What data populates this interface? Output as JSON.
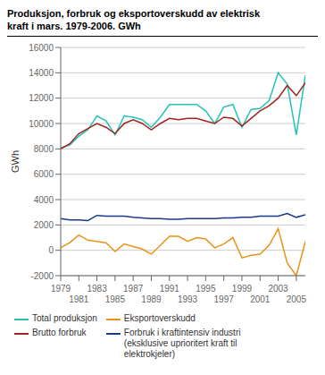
{
  "chart_data": {
    "type": "line",
    "title": "Produksjon, forbruk og eksportoverskudd av elektrisk\nkraft i mars. 1979-2006. GWh",
    "ylabel": "GWh",
    "x": [
      1979,
      1980,
      1981,
      1982,
      1983,
      1984,
      1985,
      1986,
      1987,
      1988,
      1989,
      1990,
      1991,
      1992,
      1993,
      1994,
      1995,
      1996,
      1997,
      1998,
      1999,
      2000,
      2001,
      2002,
      2003,
      2004,
      2005,
      2006
    ],
    "series": [
      {
        "name": "Total produksjon",
        "color": "#22c4b8",
        "values": [
          8100,
          8300,
          9000,
          9500,
          10600,
          10200,
          9100,
          10600,
          10500,
          10300,
          9700,
          10500,
          11500,
          11500,
          11500,
          11500,
          11000,
          10000,
          11300,
          11500,
          9700,
          11100,
          11200,
          11800,
          14000,
          13100,
          9100,
          13800
        ]
      },
      {
        "name": "Brutto forbruk",
        "color": "#a0251e",
        "values": [
          8000,
          8400,
          9200,
          9600,
          10000,
          9700,
          9200,
          10000,
          10300,
          10000,
          9500,
          10000,
          10400,
          10300,
          10400,
          10400,
          10200,
          10000,
          10500,
          10400,
          9800,
          10400,
          11000,
          11400,
          12000,
          13000,
          12200,
          13200
        ]
      },
      {
        "name": "Eksportoverskudd",
        "color": "#e8931a",
        "values": [
          200,
          600,
          1200,
          800,
          700,
          600,
          -100,
          500,
          300,
          100,
          -300,
          400,
          1100,
          1100,
          700,
          1000,
          900,
          200,
          500,
          1000,
          -600,
          -400,
          -300,
          400,
          1700,
          -1000,
          -2000,
          700
        ]
      },
      {
        "name": "Forbruk i kraftintensiv industri\n(eksklusive uprioritert kraft til\nelektrokjeler)",
        "color": "#1a3a8c",
        "values": [
          2500,
          2400,
          2400,
          2350,
          2750,
          2700,
          2700,
          2700,
          2600,
          2550,
          2500,
          2500,
          2450,
          2450,
          2500,
          2500,
          2500,
          2500,
          2550,
          2550,
          2600,
          2600,
          2700,
          2700,
          2700,
          2900,
          2600,
          2800
        ]
      }
    ],
    "xlim": [
      1979,
      2006
    ],
    "xticks": [
      1979,
      1981,
      1983,
      1985,
      1987,
      1989,
      1991,
      1993,
      1995,
      1997,
      1999,
      2001,
      2003,
      2005
    ],
    "ylim": [
      -2000,
      16000
    ],
    "yticks": [
      -2000,
      0,
      2000,
      4000,
      6000,
      8000,
      10000,
      12000,
      14000,
      16000
    ],
    "grid": true,
    "legend": "lower left"
  }
}
